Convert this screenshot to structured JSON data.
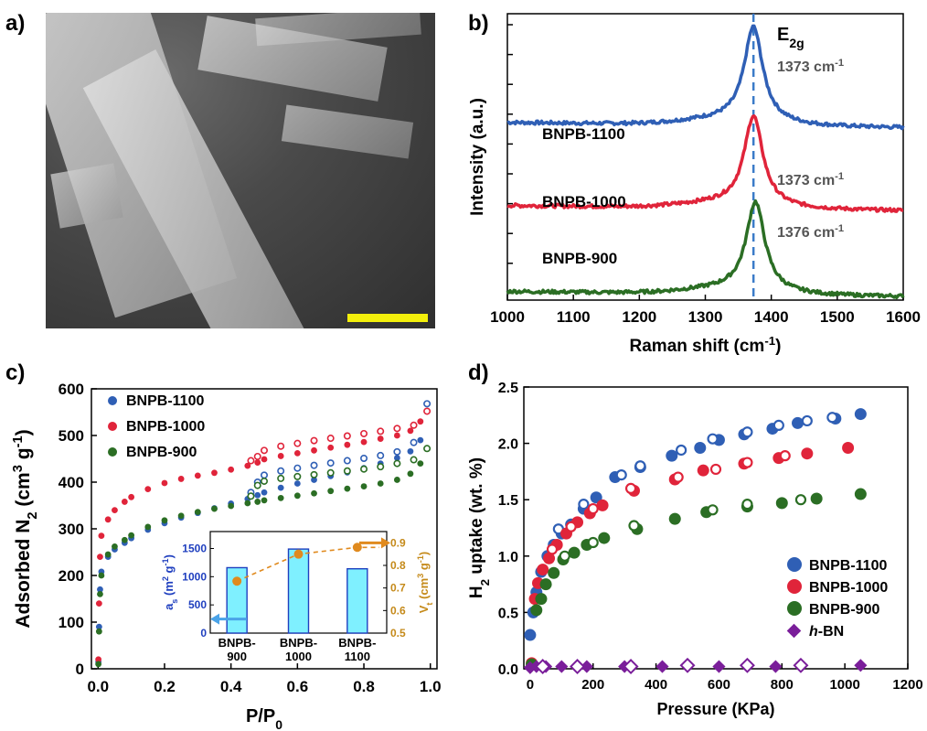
{
  "panels": {
    "a": {
      "label": "a)"
    },
    "b": {
      "label": "b)"
    },
    "c": {
      "label": "c)"
    },
    "d": {
      "label": "d)"
    }
  },
  "colors": {
    "blue": "#2f5fb5",
    "red": "#e0243a",
    "green": "#2b6e24",
    "purple": "#7a1e9a",
    "orange": "#e08a1e",
    "cyan": "#7ff0ff",
    "dash": "#3b7bc8"
  },
  "chart_data": [
    {
      "panel": "a",
      "type": "image",
      "description_visible": "",
      "scalebar_color": "#f3ef0b"
    },
    {
      "panel": "b",
      "type": "line",
      "xlabel": "Raman shift (cm",
      "xlabel_sup": "-1",
      "xlabel_tail": ")",
      "ylabel": "Intensity (a.u.)",
      "xlim": [
        1000,
        1600
      ],
      "xticks": [
        1000,
        1100,
        1200,
        1300,
        1400,
        1500,
        1600
      ],
      "peak_label": "E",
      "peak_label_sub": "2g",
      "peak_x": 1373,
      "series": [
        {
          "name": "BNPB-1100",
          "color": "#2f5fb5",
          "peak": 1373,
          "baseline": 0.62,
          "height": 0.33,
          "annotation": "1373 cm",
          "annotation_sup": "-1"
        },
        {
          "name": "BNPB-1000",
          "color": "#e0243a",
          "peak": 1373,
          "baseline": 0.33,
          "height": 0.31,
          "annotation": "1373 cm",
          "annotation_sup": "-1"
        },
        {
          "name": "BNPB-900",
          "color": "#2b6e24",
          "peak": 1376,
          "baseline": 0.03,
          "height": 0.31,
          "annotation": "1376 cm",
          "annotation_sup": "-1"
        }
      ]
    },
    {
      "panel": "c",
      "type": "scatter",
      "xlabel": "P/P",
      "xlabel_sub": "0",
      "ylabel": "Adsorbed N",
      "ylabel_sub": "2",
      "ylabel_tail": " (cm",
      "ylabel_sup": "3",
      "ylabel_tail2": " g",
      "ylabel_sup2": "-1",
      "ylabel_end": ")",
      "xlim": [
        -0.02,
        1.02
      ],
      "ylim": [
        0,
        600
      ],
      "xticks": [
        0.0,
        0.2,
        0.4,
        0.6,
        0.8,
        1.0
      ],
      "yticks": [
        0,
        100,
        200,
        300,
        400,
        500,
        600
      ],
      "series": [
        {
          "name": "BNPB-1100",
          "color": "#2f5fb5",
          "adsorption": [
            [
              0.001,
              15
            ],
            [
              0.003,
              90
            ],
            [
              0.006,
              170
            ],
            [
              0.01,
              208
            ],
            [
              0.03,
              240
            ],
            [
              0.05,
              256
            ],
            [
              0.08,
              270
            ],
            [
              0.1,
              280
            ],
            [
              0.15,
              298
            ],
            [
              0.2,
              312
            ],
            [
              0.25,
              324
            ],
            [
              0.3,
              334
            ],
            [
              0.35,
              344
            ],
            [
              0.4,
              354
            ],
            [
              0.45,
              364
            ],
            [
              0.48,
              372
            ],
            [
              0.5,
              378
            ],
            [
              0.55,
              388
            ],
            [
              0.6,
              397
            ],
            [
              0.65,
              405
            ],
            [
              0.7,
              413
            ],
            [
              0.75,
              421
            ],
            [
              0.8,
              430
            ],
            [
              0.85,
              440
            ],
            [
              0.9,
              452
            ],
            [
              0.94,
              466
            ],
            [
              0.97,
              490
            ],
            [
              0.99,
              568
            ]
          ],
          "desorption": [
            [
              0.99,
              568
            ],
            [
              0.95,
              485
            ],
            [
              0.9,
              465
            ],
            [
              0.85,
              457
            ],
            [
              0.8,
              451
            ],
            [
              0.75,
              446
            ],
            [
              0.7,
              441
            ],
            [
              0.65,
              436
            ],
            [
              0.6,
              430
            ],
            [
              0.55,
              424
            ],
            [
              0.5,
              415
            ],
            [
              0.48,
              400
            ],
            [
              0.46,
              378
            ]
          ]
        },
        {
          "name": "BNPB-1000",
          "color": "#e0243a",
          "adsorption": [
            [
              0.001,
              20
            ],
            [
              0.003,
              140
            ],
            [
              0.006,
              240
            ],
            [
              0.01,
              285
            ],
            [
              0.03,
              320
            ],
            [
              0.05,
              340
            ],
            [
              0.08,
              358
            ],
            [
              0.1,
              368
            ],
            [
              0.15,
              385
            ],
            [
              0.2,
              398
            ],
            [
              0.25,
              407
            ],
            [
              0.3,
              414
            ],
            [
              0.35,
              420
            ],
            [
              0.4,
              427
            ],
            [
              0.45,
              435
            ],
            [
              0.48,
              442
            ],
            [
              0.5,
              449
            ],
            [
              0.55,
              456
            ],
            [
              0.6,
              462
            ],
            [
              0.65,
              468
            ],
            [
              0.7,
              474
            ],
            [
              0.75,
              480
            ],
            [
              0.8,
              486
            ],
            [
              0.85,
              493
            ],
            [
              0.9,
              500
            ],
            [
              0.94,
              510
            ],
            [
              0.97,
              530
            ],
            [
              0.99,
              552
            ]
          ],
          "desorption": [
            [
              0.99,
              552
            ],
            [
              0.95,
              522
            ],
            [
              0.9,
              515
            ],
            [
              0.85,
              509
            ],
            [
              0.8,
              504
            ],
            [
              0.75,
              499
            ],
            [
              0.7,
              494
            ],
            [
              0.65,
              489
            ],
            [
              0.6,
              483
            ],
            [
              0.55,
              477
            ],
            [
              0.5,
              468
            ],
            [
              0.48,
              455
            ],
            [
              0.46,
              446
            ]
          ]
        },
        {
          "name": "BNPB-900",
          "color": "#2b6e24",
          "adsorption": [
            [
              0.001,
              10
            ],
            [
              0.003,
              80
            ],
            [
              0.006,
              160
            ],
            [
              0.01,
              200
            ],
            [
              0.03,
              245
            ],
            [
              0.05,
              262
            ],
            [
              0.08,
              276
            ],
            [
              0.1,
              286
            ],
            [
              0.15,
              304
            ],
            [
              0.2,
              318
            ],
            [
              0.25,
              328
            ],
            [
              0.3,
              336
            ],
            [
              0.35,
              343
            ],
            [
              0.4,
              349
            ],
            [
              0.45,
              355
            ],
            [
              0.48,
              358
            ],
            [
              0.5,
              361
            ],
            [
              0.55,
              366
            ],
            [
              0.6,
              371
            ],
            [
              0.65,
              376
            ],
            [
              0.7,
              381
            ],
            [
              0.75,
              386
            ],
            [
              0.8,
              391
            ],
            [
              0.85,
              397
            ],
            [
              0.9,
              405
            ],
            [
              0.94,
              418
            ],
            [
              0.97,
              440
            ],
            [
              0.99,
              472
            ]
          ],
          "desorption": [
            [
              0.99,
              472
            ],
            [
              0.95,
              448
            ],
            [
              0.9,
              440
            ],
            [
              0.85,
              433
            ],
            [
              0.8,
              428
            ],
            [
              0.75,
              424
            ],
            [
              0.7,
              420
            ],
            [
              0.65,
              416
            ],
            [
              0.6,
              412
            ],
            [
              0.55,
              408
            ],
            [
              0.5,
              402
            ],
            [
              0.48,
              393
            ],
            [
              0.46,
              370
            ]
          ]
        }
      ],
      "inset": {
        "type": "bar",
        "categories": [
          "BNPB-\n900",
          "BNPB-\n1000",
          "BNPB-\n1100"
        ],
        "cat_line1": [
          "BNPB-",
          "BNPB-",
          "BNPB-"
        ],
        "cat_line2": [
          "900",
          "1000",
          "1100"
        ],
        "bar_values": [
          1160,
          1490,
          1140
        ],
        "line_values": [
          0.73,
          0.85,
          0.88
        ],
        "ylim_left": [
          0,
          1800
        ],
        "yticks_left": [
          0,
          500,
          1000,
          1500
        ],
        "ylim_right": [
          0.5,
          0.95
        ],
        "yticks_right": [
          0.5,
          0.6,
          0.7,
          0.8,
          0.9
        ],
        "ylabel_left": "a",
        "ylabel_left_sub": "s",
        "ylabel_left_tail": " (m",
        "ylabel_left_sup": "2",
        "ylabel_left_tail2": " g",
        "ylabel_left_sup2": "-1",
        "ylabel_left_end": ")",
        "ylabel_right": "V",
        "ylabel_right_sub": "t",
        "ylabel_right_tail": " (cm",
        "ylabel_right_sup": "3",
        "ylabel_right_tail2": " g",
        "ylabel_right_sup2": "-1",
        "ylabel_right_end": ")"
      }
    },
    {
      "panel": "d",
      "type": "scatter",
      "xlabel": "Pressure (KPa)",
      "ylabel": "H",
      "ylabel_sub": "2",
      "ylabel_tail": " uptake (wt. %)",
      "xlim": [
        -20,
        1200
      ],
      "ylim": [
        0,
        2.5
      ],
      "xticks": [
        0,
        200,
        400,
        600,
        800,
        1000,
        1200
      ],
      "yticks": [
        0.0,
        0.5,
        1.0,
        1.5,
        2.0,
        2.5
      ],
      "series": [
        {
          "name": "BNPB-1100",
          "color": "#2f5fb5",
          "adsorption": [
            [
              0,
              0.3
            ],
            [
              10,
              0.5
            ],
            [
              20,
              0.68
            ],
            [
              35,
              0.86
            ],
            [
              55,
              1.0
            ],
            [
              75,
              1.1
            ],
            [
              100,
              1.2
            ],
            [
              130,
              1.28
            ],
            [
              170,
              1.42
            ],
            [
              210,
              1.52
            ],
            [
              270,
              1.7
            ],
            [
              350,
              1.79
            ],
            [
              450,
              1.89
            ],
            [
              540,
              1.96
            ],
            [
              600,
              2.03
            ],
            [
              680,
              2.08
            ],
            [
              770,
              2.13
            ],
            [
              850,
              2.18
            ],
            [
              970,
              2.22
            ],
            [
              1050,
              2.26
            ]
          ],
          "desorption": [
            [
              960,
              2.23
            ],
            [
              880,
              2.2
            ],
            [
              790,
              2.16
            ],
            [
              690,
              2.1
            ],
            [
              580,
              2.04
            ],
            [
              480,
              1.94
            ],
            [
              350,
              1.8
            ],
            [
              290,
              1.72
            ],
            [
              170,
              1.46
            ],
            [
              90,
              1.24
            ]
          ]
        },
        {
          "name": "BNPB-1000",
          "color": "#e0243a",
          "adsorption": [
            [
              5,
              0.05
            ],
            [
              15,
              0.62
            ],
            [
              25,
              0.76
            ],
            [
              40,
              0.88
            ],
            [
              60,
              0.98
            ],
            [
              85,
              1.1
            ],
            [
              115,
              1.2
            ],
            [
              150,
              1.3
            ],
            [
              190,
              1.38
            ],
            [
              230,
              1.45
            ],
            [
              330,
              1.58
            ],
            [
              460,
              1.68
            ],
            [
              550,
              1.76
            ],
            [
              680,
              1.82
            ],
            [
              790,
              1.87
            ],
            [
              880,
              1.91
            ],
            [
              1010,
              1.96
            ]
          ],
          "desorption": [
            [
              810,
              1.89
            ],
            [
              690,
              1.83
            ],
            [
              590,
              1.77
            ],
            [
              470,
              1.7
            ],
            [
              320,
              1.6
            ],
            [
              200,
              1.42
            ],
            [
              130,
              1.26
            ],
            [
              70,
              1.06
            ]
          ]
        },
        {
          "name": "BNPB-900",
          "color": "#2b6e24",
          "adsorption": [
            [
              5,
              0.04
            ],
            [
              20,
              0.52
            ],
            [
              35,
              0.62
            ],
            [
              50,
              0.75
            ],
            [
              75,
              0.85
            ],
            [
              105,
              0.97
            ],
            [
              140,
              1.03
            ],
            [
              180,
              1.1
            ],
            [
              235,
              1.16
            ],
            [
              340,
              1.24
            ],
            [
              460,
              1.33
            ],
            [
              560,
              1.39
            ],
            [
              690,
              1.44
            ],
            [
              800,
              1.47
            ],
            [
              910,
              1.51
            ],
            [
              1050,
              1.55
            ]
          ],
          "desorption": [
            [
              860,
              1.5
            ],
            [
              690,
              1.46
            ],
            [
              580,
              1.41
            ],
            [
              330,
              1.27
            ],
            [
              200,
              1.12
            ],
            [
              110,
              1.0
            ]
          ]
        },
        {
          "name": "h-BN",
          "name_italic": "h",
          "name_rest": "-BN",
          "color": "#7a1e9a",
          "adsorption": [
            [
              0,
              0.01
            ],
            [
              20,
              0.02
            ],
            [
              50,
              0.02
            ],
            [
              100,
              0.02
            ],
            [
              180,
              0.02
            ],
            [
              300,
              0.02
            ],
            [
              420,
              0.02
            ],
            [
              600,
              0.02
            ],
            [
              780,
              0.02
            ],
            [
              1050,
              0.03
            ]
          ],
          "desorption": [
            [
              860,
              0.03
            ],
            [
              690,
              0.03
            ],
            [
              500,
              0.03
            ],
            [
              320,
              0.02
            ],
            [
              150,
              0.02
            ],
            [
              40,
              0.02
            ]
          ]
        }
      ]
    }
  ]
}
